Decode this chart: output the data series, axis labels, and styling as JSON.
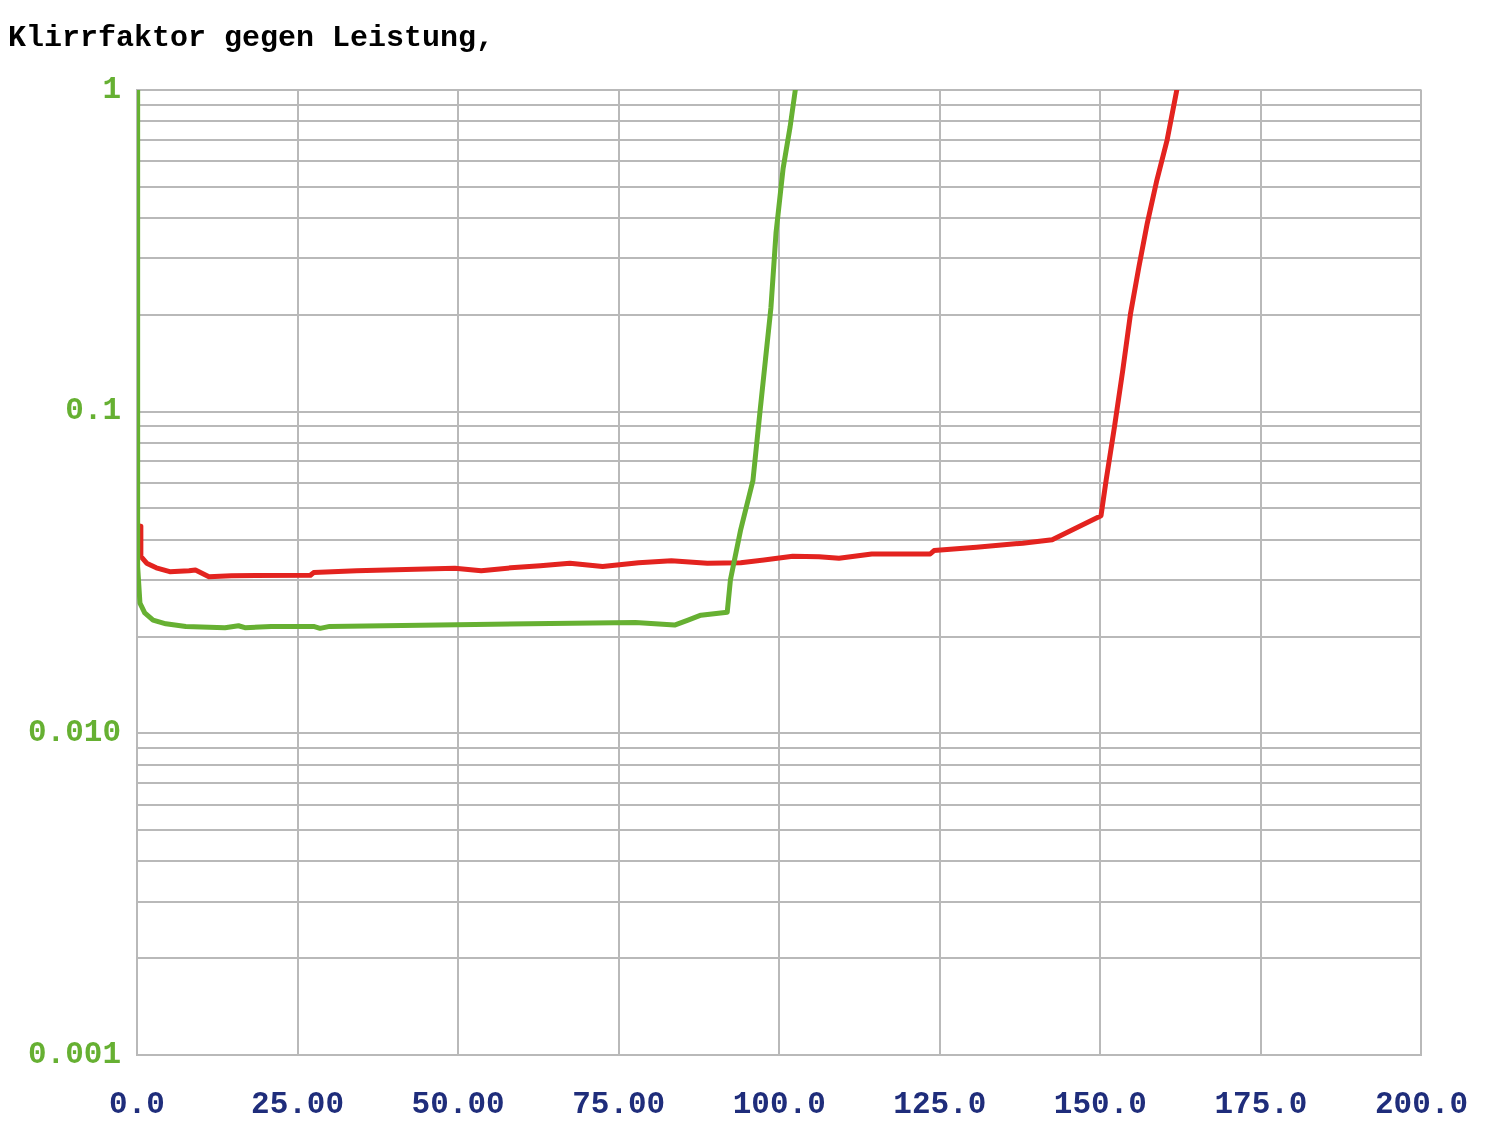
{
  "chart_data": {
    "type": "line",
    "title": "Klirrfaktor gegen Leistung,",
    "log": "y",
    "grid": true,
    "legend": false,
    "xlim": [
      0,
      200
    ],
    "ylim": [
      0.001,
      1
    ],
    "xticks": [
      {
        "value": 0,
        "label": "0.0"
      },
      {
        "value": 25,
        "label": "25.00"
      },
      {
        "value": 50,
        "label": "50.00"
      },
      {
        "value": 75,
        "label": "75.00"
      },
      {
        "value": 100,
        "label": "100.0"
      },
      {
        "value": 125,
        "label": "125.0"
      },
      {
        "value": 150,
        "label": "150.0"
      },
      {
        "value": 175,
        "label": "175.0"
      },
      {
        "value": 200,
        "label": "200.0"
      }
    ],
    "yticks": [
      0.001,
      {
        "value": 0.002,
        "label": null
      },
      {
        "value": 0.003,
        "label": null
      },
      {
        "value": 0.004,
        "label": null
      },
      {
        "value": 0.005,
        "label": null
      },
      {
        "value": 0.006,
        "label": null
      },
      {
        "value": 0.007,
        "label": null
      },
      {
        "value": 0.008,
        "label": null
      },
      {
        "value": 0.009,
        "label": null
      },
      {
        "value": 0.01,
        "label": "0.010"
      },
      {
        "value": 0.02,
        "label": null
      },
      {
        "value": 0.03,
        "label": null
      },
      {
        "value": 0.04,
        "label": null
      },
      {
        "value": 0.05,
        "label": null
      },
      {
        "value": 0.06,
        "label": null
      },
      {
        "value": 0.07,
        "label": null
      },
      {
        "value": 0.08,
        "label": null
      },
      {
        "value": 0.09,
        "label": null
      },
      0.1,
      {
        "value": 0.2,
        "label": null
      },
      {
        "value": 0.3,
        "label": null
      },
      {
        "value": 0.4,
        "label": null
      },
      {
        "value": 0.5,
        "label": null
      },
      {
        "value": 0.6,
        "label": null
      },
      {
        "value": 0.7,
        "label": null
      },
      {
        "value": 0.8,
        "label": null
      },
      {
        "value": 0.9,
        "label": null
      },
      1
    ],
    "series": [
      {
        "color": "#66b032",
        "x": [
          0,
          0.1,
          0.46,
          1.2,
          2.5,
          4.5,
          7.6,
          13.7,
          15.8,
          16.8,
          20.9,
          27.5,
          28.5,
          30,
          52.6,
          77.6,
          83.7,
          85.8,
          87.8,
          91.9,
          92.4,
          94.0,
          95.9,
          97.0,
          98.7,
          99.5,
          100.6,
          101.7,
          102.5
        ],
        "values": [
          1,
          0.033,
          0.0254,
          0.0237,
          0.0225,
          0.0219,
          0.0215,
          0.0213,
          0.0216,
          0.0213,
          0.0215,
          0.0215,
          0.0212,
          0.0215,
          0.0218,
          0.0221,
          0.0217,
          0.0225,
          0.0233,
          0.0238,
          0.03,
          0.043,
          0.061,
          0.1,
          0.21,
          0.36,
          0.57,
          0.77,
          1
        ]
      },
      {
        "color": "#e3231f",
        "x": [
          0.5,
          0.6,
          1.5,
          3.0,
          5.1,
          8.1,
          9.1,
          11.2,
          14.7,
          27,
          27.5,
          34.2,
          49.5,
          53.6,
          58.2,
          62.8,
          67.4,
          72.5,
          78.1,
          83.2,
          88.8,
          94,
          99.1,
          102.1,
          106.2,
          109.3,
          114.4,
          123.5,
          124.1,
          130.7,
          137.9,
          142.5,
          150.1,
          150.9,
          152.2,
          153.5,
          154.7,
          156.0,
          157.3,
          158.8,
          160.4,
          161.9
        ],
        "values": [
          0.044,
          0.0355,
          0.0338,
          0.0327,
          0.0318,
          0.032,
          0.0322,
          0.0307,
          0.0309,
          0.031,
          0.0316,
          0.032,
          0.0326,
          0.032,
          0.0327,
          0.0332,
          0.0338,
          0.033,
          0.0339,
          0.0344,
          0.0338,
          0.0339,
          0.0349,
          0.0355,
          0.0354,
          0.035,
          0.0361,
          0.0361,
          0.037,
          0.0379,
          0.039,
          0.04,
          0.0475,
          0.0613,
          0.0898,
          0.135,
          0.202,
          0.282,
          0.385,
          0.525,
          0.7,
          1
        ]
      }
    ]
  }
}
